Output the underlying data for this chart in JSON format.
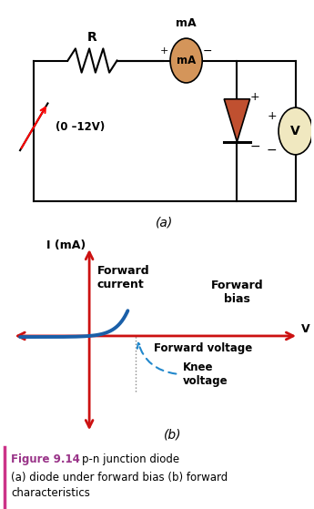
{
  "bg_color_top": "#cde8f5",
  "bg_color_bottom": "#cde8f5",
  "white": "#ffffff",
  "red": "#cc1111",
  "blue_curve": "#1a5fa8",
  "orange_ammeter": "#d4955a",
  "diode_color": "#c05030",
  "voltmeter_color": "#f0e8c0",
  "text_color": "#000000",
  "figure_label_color": "#993388",
  "title_bold": "Figure 9.14",
  "title_rest": "  p-n junction diode",
  "subtitle": "(a) diode under forward bias (b) forward\ncharacteristics",
  "label_a": "(a)",
  "label_b": "(b)",
  "R_label": "R",
  "mA_label": "mA",
  "voltage_label": "(0 –12V)",
  "V_axis_label": "V",
  "I_label": "I (mA)",
  "forward_current": "Forward\ncurrent",
  "forward_bias": "Forward\nbias",
  "forward_voltage": "Forward voltage",
  "knee_voltage": "Knee\nvoltage",
  "fig_width": 3.45,
  "fig_height": 5.59,
  "dpi": 100
}
